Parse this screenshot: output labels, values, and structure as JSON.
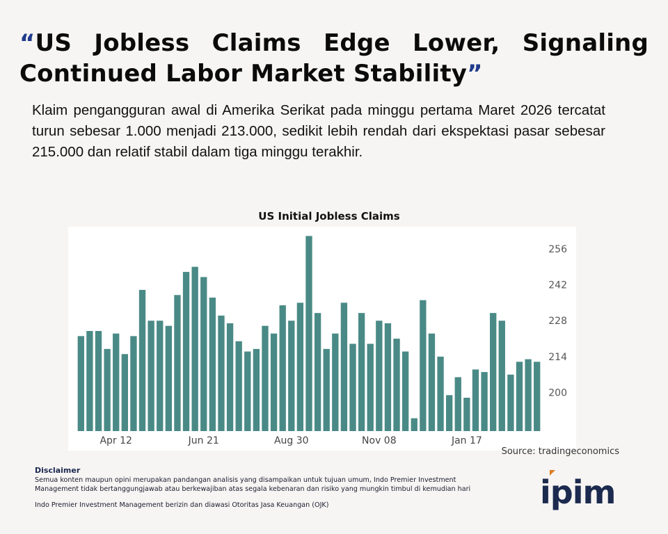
{
  "headline": {
    "open_quote": "“",
    "text": "US Jobless Claims Edge Lower, Signaling Continued Labor Market Stability",
    "close_quote": "”"
  },
  "lede": "Klaim pengangguran awal di Amerika Serikat pada minggu pertama Maret 2026 tercatat turun sebesar 1.000 menjadi 213.000, sedikit lebih rendah dari ekspektasi pasar sebesar 215.000 dan relatif stabil dalam tiga minggu terakhir.",
  "chart_data": {
    "type": "bar",
    "title": "US Initial Jobless Claims",
    "xlabel": "",
    "ylabel": "",
    "ylim": [
      185,
      263
    ],
    "yticks": [
      200,
      214,
      228,
      242,
      256
    ],
    "xtick_labels": [
      {
        "label": "Apr 12",
        "index": 4
      },
      {
        "label": "Jun 21",
        "index": 14
      },
      {
        "label": "Aug 30",
        "index": 24
      },
      {
        "label": "Nov 08",
        "index": 34
      },
      {
        "label": "Jan 17",
        "index": 44
      }
    ],
    "grid": false,
    "legend": "none",
    "bar_color": "#4a8a86",
    "values": [
      222,
      224,
      224,
      217,
      223,
      215,
      222,
      240,
      228,
      228,
      226,
      238,
      247,
      249,
      245,
      237,
      230,
      227,
      220,
      216,
      217,
      226,
      223,
      234,
      228,
      235,
      261,
      231,
      217,
      223,
      235,
      219,
      231,
      219,
      228,
      227,
      221,
      216,
      190,
      236,
      223,
      214,
      199,
      206,
      198,
      209,
      208,
      231,
      228,
      207,
      212,
      213,
      212
    ]
  },
  "source": "Source: tradingeconomics",
  "disclaimer": {
    "title": "Disclaimer",
    "line1": "Semua konten maupun opini merupakan pandangan analisis yang disampaikan untuk tujuan umum, Indo Premier Investment",
    "line2": "Management tidak bertanggungjawab atau berkewajiban atas segala kebenaran dan risiko yang mungkin timbul di kemudian hari",
    "line3": "Indo Premier Investment Management berizin dan diawasi Otoritas Jasa Keuangan (OJK)"
  },
  "logo": {
    "text": "ipim",
    "color": "#1b2a4e",
    "accent": "#e07a1f"
  }
}
